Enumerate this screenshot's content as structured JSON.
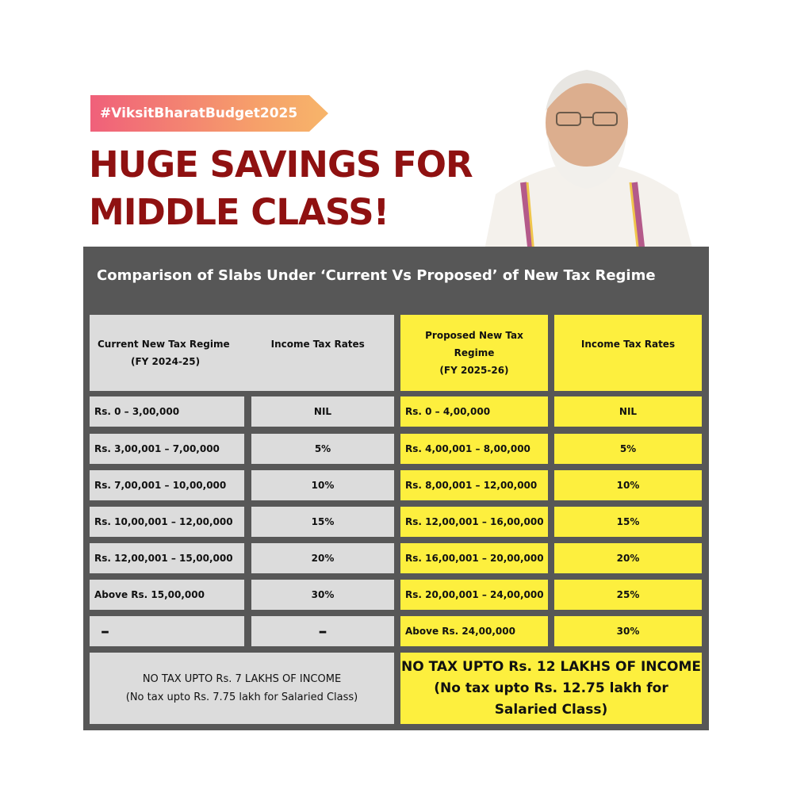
{
  "hashtag": "#ViksitBharatBudget2025",
  "headline": {
    "line1": "HUGE SAVINGS FOR",
    "line2": "MIDDLE CLASS!"
  },
  "table": {
    "title": "Comparison of Slabs Under ‘Current Vs Proposed’ of New Tax Regime",
    "headers": {
      "current_regime_line1": "Current New Tax Regime",
      "current_regime_line2": "(FY 2024-25)",
      "current_rates": "Income Tax Rates",
      "proposed_regime_line1": "Proposed New Tax",
      "proposed_regime_line2": "Regime",
      "proposed_regime_line3": "(FY 2025-26)",
      "proposed_rates": "Income Tax Rates"
    },
    "rows": [
      {
        "current_slab": "Rs. 0 – 3,00,000",
        "current_rate": "NIL",
        "proposed_slab": "Rs. 0 – 4,00,000",
        "proposed_rate": "NIL"
      },
      {
        "current_slab": "Rs. 3,00,001 – 7,00,000",
        "current_rate": "5%",
        "proposed_slab": "Rs. 4,00,001 – 8,00,000",
        "proposed_rate": "5%"
      },
      {
        "current_slab": "Rs. 7,00,001 – 10,00,000",
        "current_rate": "10%",
        "proposed_slab": "Rs. 8,00,001 – 12,00,000",
        "proposed_rate": "10%"
      },
      {
        "current_slab": "Rs. 10,00,001 – 12,00,000",
        "current_rate": "15%",
        "proposed_slab": "Rs. 12,00,001 – 16,00,000",
        "proposed_rate": "15%"
      },
      {
        "current_slab": "Rs. 12,00,001 – 15,00,000",
        "current_rate": "20%",
        "proposed_slab": "Rs. 16,00,001 – 20,00,000",
        "proposed_rate": "20%"
      },
      {
        "current_slab": "Above Rs. 15,00,000",
        "current_rate": "30%",
        "proposed_slab": "Rs. 20,00,001 – 24,00,000",
        "proposed_rate": "25%"
      },
      {
        "current_slab": "–",
        "current_rate": "–",
        "proposed_slab": "Above Rs. 24,00,000",
        "proposed_rate": "30%"
      }
    ],
    "footer": {
      "current_line1": "NO TAX UPTO Rs. 7 LAKHS OF INCOME",
      "current_line2": "(No tax upto Rs. 7.75 lakh for Salaried Class)",
      "proposed_line1": "NO TAX UPTO Rs. 12 LAKHS OF INCOME",
      "proposed_line2": "(No tax upto Rs. 12.75 lakh for",
      "proposed_line3": "Salaried Class)"
    }
  }
}
